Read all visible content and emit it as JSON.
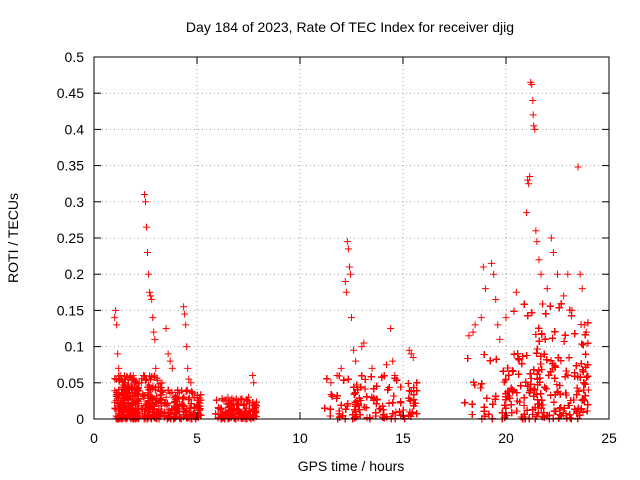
{
  "chart_data": {
    "type": "scatter",
    "title": "Day 184 of 2023, Rate Of TEC Index for receiver djig",
    "xlabel": "GPS time / hours",
    "ylabel": "ROTI / TECUs",
    "xlim": [
      0,
      25
    ],
    "ylim": [
      0,
      0.5
    ],
    "x_ticks": [
      "0",
      "5",
      "10",
      "15",
      "20",
      "25"
    ],
    "y_ticks": [
      "0",
      "0.05",
      "0.1",
      "0.15",
      "0.2",
      "0.25",
      "0.3",
      "0.35",
      "0.4",
      "0.45",
      "0.5"
    ],
    "grid": true,
    "marker": "+",
    "color": "#ff0000",
    "series": [
      {
        "name": "ROTI",
        "points": [
          [
            1.0,
            0.14
          ],
          [
            1.05,
            0.15
          ],
          [
            1.1,
            0.13
          ],
          [
            1.15,
            0.09
          ],
          [
            1.2,
            0.07
          ],
          [
            1.3,
            0.06
          ],
          [
            1.5,
            0.05
          ],
          [
            1.7,
            0.04
          ],
          [
            2.3,
            0.05
          ],
          [
            2.4,
            0.06
          ],
          [
            2.45,
            0.31
          ],
          [
            2.5,
            0.3
          ],
          [
            2.55,
            0.265
          ],
          [
            2.6,
            0.23
          ],
          [
            2.65,
            0.2
          ],
          [
            2.7,
            0.175
          ],
          [
            2.75,
            0.17
          ],
          [
            2.8,
            0.165
          ],
          [
            2.85,
            0.14
          ],
          [
            2.9,
            0.12
          ],
          [
            2.95,
            0.11
          ],
          [
            3.0,
            0.07
          ],
          [
            3.5,
            0.03
          ],
          [
            3.5,
            0.125
          ],
          [
            3.6,
            0.09
          ],
          [
            3.7,
            0.08
          ],
          [
            3.8,
            0.07
          ],
          [
            4.35,
            0.155
          ],
          [
            4.4,
            0.145
          ],
          [
            4.45,
            0.13
          ],
          [
            4.5,
            0.1
          ],
          [
            4.55,
            0.07
          ],
          [
            4.6,
            0.055
          ],
          [
            4.7,
            0.05
          ],
          [
            5.0,
            0.02
          ],
          [
            6.5,
            0.03
          ],
          [
            7.0,
            0.025
          ],
          [
            7.5,
            0.03
          ],
          [
            7.7,
            0.06
          ],
          [
            7.75,
            0.05
          ],
          [
            11.5,
            0.05
          ],
          [
            11.8,
            0.06
          ],
          [
            12.0,
            0.07
          ],
          [
            12.2,
            0.19
          ],
          [
            12.25,
            0.175
          ],
          [
            12.3,
            0.245
          ],
          [
            12.35,
            0.235
          ],
          [
            12.4,
            0.21
          ],
          [
            12.45,
            0.2
          ],
          [
            12.5,
            0.14
          ],
          [
            12.6,
            0.095
          ],
          [
            12.7,
            0.08
          ],
          [
            13.0,
            0.1
          ],
          [
            13.1,
            0.105
          ],
          [
            13.5,
            0.07
          ],
          [
            14.2,
            0.075
          ],
          [
            14.4,
            0.125
          ],
          [
            14.5,
            0.08
          ],
          [
            14.6,
            0.06
          ],
          [
            15.3,
            0.095
          ],
          [
            15.4,
            0.09
          ],
          [
            15.5,
            0.085
          ],
          [
            18.2,
            0.115
          ],
          [
            18.4,
            0.12
          ],
          [
            18.5,
            0.13
          ],
          [
            18.8,
            0.14
          ],
          [
            18.9,
            0.21
          ],
          [
            19.0,
            0.18
          ],
          [
            19.3,
            0.215
          ],
          [
            19.4,
            0.2
          ],
          [
            19.5,
            0.165
          ],
          [
            19.6,
            0.13
          ],
          [
            19.7,
            0.11
          ],
          [
            20.0,
            0.14
          ],
          [
            20.5,
            0.175
          ],
          [
            21.0,
            0.285
          ],
          [
            21.05,
            0.33
          ],
          [
            21.1,
            0.325
          ],
          [
            21.15,
            0.335
          ],
          [
            21.2,
            0.465
          ],
          [
            21.25,
            0.462
          ],
          [
            21.3,
            0.44
          ],
          [
            21.32,
            0.42
          ],
          [
            21.35,
            0.405
          ],
          [
            21.4,
            0.4
          ],
          [
            21.45,
            0.26
          ],
          [
            21.5,
            0.245
          ],
          [
            21.6,
            0.22
          ],
          [
            21.7,
            0.2
          ],
          [
            22.0,
            0.18
          ],
          [
            22.2,
            0.25
          ],
          [
            22.3,
            0.23
          ],
          [
            22.5,
            0.2
          ],
          [
            22.8,
            0.17
          ],
          [
            23.0,
            0.2
          ],
          [
            23.2,
            0.15
          ],
          [
            23.5,
            0.348
          ],
          [
            23.6,
            0.2
          ],
          [
            23.7,
            0.18
          ],
          [
            23.8,
            0.13
          ],
          [
            23.9,
            0.12
          ],
          [
            24.0,
            0.04
          ]
        ],
        "clusters": [
          {
            "x_range": [
              1.0,
              2.2
            ],
            "y_range": [
              0.0,
              0.06
            ]
          },
          {
            "x_range": [
              2.3,
              3.3
            ],
            "y_range": [
              0.0,
              0.06
            ]
          },
          {
            "x_range": [
              3.3,
              5.2
            ],
            "y_range": [
              0.0,
              0.04
            ]
          },
          {
            "x_range": [
              5.9,
              7.9
            ],
            "y_range": [
              0.0,
              0.028
            ]
          },
          {
            "x_range": [
              11.2,
              15.7
            ],
            "y_range": [
              0.0,
              0.06
            ]
          },
          {
            "x_range": [
              18.0,
              24.0
            ],
            "y_range": [
              0.0,
              0.09
            ]
          },
          {
            "x_range": [
              20.3,
              24.0
            ],
            "y_range": [
              0.0,
              0.16
            ]
          }
        ]
      }
    ]
  }
}
